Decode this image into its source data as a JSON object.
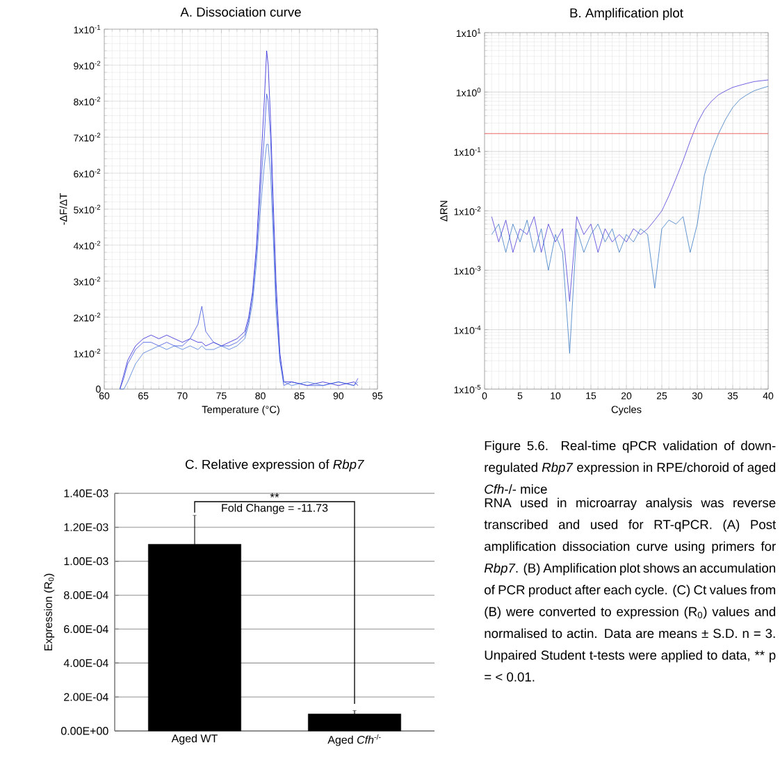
{
  "chart_data": [
    {
      "type": "line",
      "title": "A. Dissociation curve",
      "xlabel": "Temperature (°C)",
      "ylabel": "-ΔF/ΔT",
      "xlim": [
        60,
        95
      ],
      "xticks": [
        60,
        65,
        70,
        75,
        80,
        85,
        90,
        95
      ],
      "ylim": [
        0,
        0.1
      ],
      "yticks": [
        0,
        {
          "value": 0.01,
          "label": "1x10$^{-2}$"
        },
        {
          "value": 0.02,
          "label": "2x10$^{-2}$"
        },
        {
          "value": 0.03,
          "label": "3x10$^{-2}$"
        },
        {
          "value": 0.04,
          "label": "4x10$^{-2}$"
        },
        {
          "value": 0.05,
          "label": "5x10$^{-2}$"
        },
        {
          "value": 0.06,
          "label": "6x10$^{-2}$"
        },
        {
          "value": 0.07,
          "label": "7x10$^{-2}$"
        },
        {
          "value": 0.08,
          "label": "8x10$^{-2}$"
        },
        {
          "value": 0.09,
          "label": "9x10$^{-2}$"
        },
        {
          "value": 0.1,
          "label": "1x10$^{-1}$"
        }
      ],
      "grid": true,
      "x": [
        62,
        62.5,
        63,
        64,
        65,
        66,
        67,
        68,
        69,
        70,
        71,
        72,
        72.5,
        73,
        74,
        75,
        76,
        77,
        78,
        78.5,
        79,
        79.5,
        80,
        80.5,
        80.8,
        81,
        81.3,
        81.6,
        82,
        82.5,
        83,
        84,
        86,
        88,
        90,
        92,
        92.5
      ],
      "series": [
        {
          "color": "#2a1fd6",
          "values": [
            0,
            0.004,
            0.008,
            0.012,
            0.014,
            0.015,
            0.014,
            0.015,
            0.014,
            0.013,
            0.014,
            0.013,
            0.013,
            0.012,
            0.013,
            0.012,
            0.013,
            0.014,
            0.016,
            0.02,
            0.027,
            0.04,
            0.06,
            0.08,
            0.094,
            0.09,
            0.075,
            0.055,
            0.03,
            0.01,
            0.002,
            0.002,
            0.001,
            0.002,
            0.001,
            0.002,
            0.001
          ]
        },
        {
          "color": "#4a78d8",
          "values": [
            0,
            0,
            0.002,
            0.007,
            0.01,
            0.011,
            0.012,
            0.011,
            0.012,
            0.011,
            0.012,
            0.011,
            0.012,
            0.011,
            0.011,
            0.012,
            0.011,
            0.012,
            0.014,
            0.018,
            0.024,
            0.035,
            0.05,
            0.062,
            0.068,
            0.068,
            0.06,
            0.045,
            0.022,
            0.008,
            0.002,
            0.001,
            0.002,
            0.001,
            0.002,
            0.001,
            0.002
          ]
        },
        {
          "color": "#3a4fe0",
          "values": [
            0,
            0.003,
            0.007,
            0.011,
            0.013,
            0.013,
            0.012,
            0.013,
            0.012,
            0.012,
            0.014,
            0.018,
            0.023,
            0.016,
            0.013,
            0.012,
            0.012,
            0.013,
            0.015,
            0.019,
            0.026,
            0.038,
            0.055,
            0.07,
            0.082,
            0.08,
            0.07,
            0.05,
            0.026,
            0.008,
            0.001,
            0.002,
            0.001,
            0.001,
            0.002,
            0.001,
            0.003
          ]
        }
      ]
    },
    {
      "type": "line",
      "title": "B. Amplification plot",
      "xlabel": "Cycles",
      "ylabel": "ΔRN",
      "log": true,
      "xlim": [
        0,
        40
      ],
      "xticks": [
        0,
        5,
        10,
        15,
        20,
        25,
        30,
        35,
        40
      ],
      "ylim": [
        1e-05,
        10
      ],
      "yticks": [
        {
          "value": 1e-05,
          "label": "1x10$^{-5}$"
        },
        {
          "value": 0.0001,
          "label": "1x10$^{-4}$"
        },
        {
          "value": 0.001,
          "label": "1x10$^{-3}$"
        },
        {
          "value": 0.01,
          "label": "1x10$^{-2}$"
        },
        {
          "value": 0.1,
          "label": "1x10$^{-1}$"
        },
        {
          "value": 1,
          "label": "1x10$^{0}$"
        },
        {
          "value": 10,
          "label": "1x10$^{1}$"
        }
      ],
      "grid": true,
      "ref_lines": [
        {
          "axis": "y",
          "value": 0.2,
          "color": "#f06060"
        }
      ],
      "x": [
        1,
        2,
        3,
        4,
        5,
        6,
        7,
        8,
        9,
        10,
        11,
        12,
        13,
        14,
        15,
        16,
        17,
        18,
        19,
        20,
        21,
        22,
        23,
        24,
        25,
        26,
        27,
        28,
        29,
        30,
        31,
        32,
        33,
        34,
        35,
        36,
        37,
        38,
        39,
        40
      ],
      "series": [
        {
          "color": "#4a3ad8",
          "values": [
            0.008,
            0.003,
            0.007,
            0.002,
            0.005,
            0.004,
            0.008,
            0.002,
            0.006,
            0.003,
            0.005,
            0.0003,
            0.008,
            0.004,
            0.006,
            0.002,
            0.005,
            0.003,
            0.004,
            0.003,
            0.005,
            0.004,
            0.005,
            0.007,
            0.01,
            0.018,
            0.035,
            0.07,
            0.15,
            0.3,
            0.5,
            0.7,
            0.9,
            1.05,
            1.2,
            1.3,
            1.4,
            1.5,
            1.55,
            1.6
          ]
        },
        {
          "color": "#3b7ac4",
          "values": [
            0.004,
            0.006,
            0.002,
            0.006,
            0.003,
            0.007,
            0.002,
            0.005,
            0.001,
            0.004,
            0.002,
            4e-05,
            0.005,
            0.002,
            0.004,
            0.006,
            0.003,
            0.005,
            0.002,
            0.004,
            0.003,
            0.005,
            0.004,
            0.0005,
            0.005,
            0.007,
            0.006,
            0.008,
            0.002,
            0.006,
            0.04,
            0.1,
            0.2,
            0.35,
            0.55,
            0.75,
            0.9,
            1.05,
            1.15,
            1.25
          ]
        }
      ]
    },
    {
      "type": "bar",
      "title": "C. Relative expression of *Rbp7*",
      "ylabel": "Expression (R$_{0}$)",
      "categories": [
        "Aged WT",
        "Aged *Cfh*$^{-/-}$"
      ],
      "values": [
        0.0011,
        0.0001
      ],
      "errors": [
        0.00017,
        2e-05
      ],
      "color": "#000000",
      "ylim": [
        0,
        0.0014
      ],
      "yticks": [
        {
          "value": 0,
          "label": "0.00E+00"
        },
        {
          "value": 0.0002,
          "label": "2.00E-04"
        },
        {
          "value": 0.0004,
          "label": "4.00E-04"
        },
        {
          "value": 0.0006,
          "label": "6.00E-04"
        },
        {
          "value": 0.0008,
          "label": "8.00E-04"
        },
        {
          "value": 0.001,
          "label": "1.00E-03"
        },
        {
          "value": 0.0012,
          "label": "1.20E-03"
        },
        {
          "value": 0.0014,
          "label": "1.40E-03"
        }
      ],
      "grid": "y",
      "annotations": [
        "**",
        "Fold Change = -11.73"
      ]
    },
    {
      "type": "other",
      "title": "Figure 5.6. Real-time qPCR validation of down-regulated *Rbp7* expression in RPE/choroid of aged *Cfh*-/- mice",
      "annotations": [
        "RNA used in microarray analysis was reverse transcribed and used for RT-qPCR. (A) Post amplification dissociation curve using primers for *Rbp7*. (B) Amplification plot shows an accumulation of PCR product after each cycle. (C) Ct values from (B) were converted to expression (R$_{0}$) values and normalised to actin. Data are means ± S.D. n = 3. Unpaired Student t-tests were applied to data, ** p = < 0.01."
      ]
    }
  ]
}
